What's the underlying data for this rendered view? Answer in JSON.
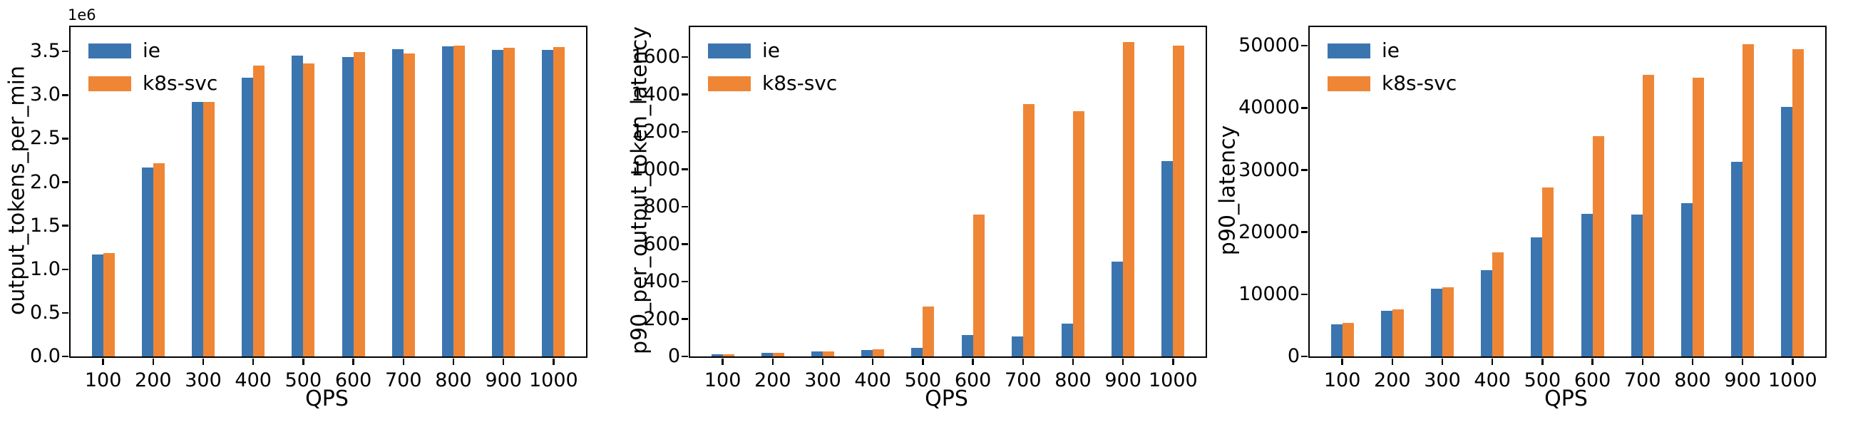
{
  "figure": {
    "background": "#ffffff",
    "axis_color": "#000000",
    "text_color": "#000000",
    "series_colors": {
      "ie": "#3b75af",
      "k8s-svc": "#ef8636"
    }
  },
  "chart_data": [
    {
      "type": "bar",
      "title": "",
      "xlabel": "QPS",
      "ylabel": "output_tokens_per_min",
      "offset_text": "1e6",
      "grid": false,
      "legend_position": "upper left",
      "categories": [
        "100",
        "200",
        "300",
        "400",
        "500",
        "600",
        "700",
        "800",
        "900",
        "1000"
      ],
      "series": [
        {
          "name": "ie",
          "color": "#3b75af",
          "values": [
            1170000,
            2170000,
            2920000,
            3200000,
            3450000,
            3440000,
            3530000,
            3560000,
            3520000,
            3520000
          ]
        },
        {
          "name": "k8s-svc",
          "color": "#ef8636",
          "values": [
            1190000,
            2220000,
            2920000,
            3340000,
            3360000,
            3490000,
            3480000,
            3570000,
            3540000,
            3550000
          ]
        }
      ],
      "ylim": [
        0,
        3780000
      ],
      "ytick_values": [
        0,
        500000,
        1000000,
        1500000,
        2000000,
        2500000,
        3000000,
        3500000
      ],
      "ytick_labels": [
        "0.0",
        "0.5",
        "1.0",
        "1.5",
        "2.0",
        "2.5",
        "3.0",
        "3.5"
      ]
    },
    {
      "type": "bar",
      "title": "",
      "xlabel": "QPS",
      "ylabel": "p90_per_output_token_latency",
      "offset_text": "",
      "grid": false,
      "legend_position": "upper left",
      "categories": [
        "100",
        "200",
        "300",
        "400",
        "500",
        "600",
        "700",
        "800",
        "900",
        "1000"
      ],
      "series": [
        {
          "name": "ie",
          "color": "#3b75af",
          "values": [
            10,
            18,
            26,
            35,
            47,
            115,
            108,
            176,
            505,
            1045
          ]
        },
        {
          "name": "k8s-svc",
          "color": "#ef8636",
          "values": [
            11,
            18,
            26,
            39,
            265,
            760,
            1350,
            1310,
            1680,
            1660
          ]
        }
      ],
      "ylim": [
        0,
        1760
      ],
      "ytick_values": [
        0,
        200,
        400,
        600,
        800,
        1000,
        1200,
        1400,
        1600
      ],
      "ytick_labels": [
        "0",
        "200",
        "400",
        "600",
        "800",
        "1000",
        "1200",
        "1400",
        "1600"
      ]
    },
    {
      "type": "bar",
      "title": "",
      "xlabel": "QPS",
      "ylabel": "p90_latency",
      "offset_text": "",
      "grid": false,
      "legend_position": "upper left",
      "categories": [
        "100",
        "200",
        "300",
        "400",
        "500",
        "600",
        "700",
        "800",
        "900",
        "1000"
      ],
      "series": [
        {
          "name": "ie",
          "color": "#3b75af",
          "values": [
            5200,
            7300,
            10900,
            13900,
            19200,
            23000,
            22800,
            24700,
            31300,
            40200
          ]
        },
        {
          "name": "k8s-svc",
          "color": "#ef8636",
          "values": [
            5400,
            7600,
            11100,
            16800,
            27200,
            35500,
            45300,
            44800,
            50300,
            49400
          ]
        }
      ],
      "ylim": [
        0,
        53000
      ],
      "ytick_values": [
        0,
        10000,
        20000,
        30000,
        40000,
        50000
      ],
      "ytick_labels": [
        "0",
        "10000",
        "20000",
        "30000",
        "40000",
        "50000"
      ]
    }
  ]
}
